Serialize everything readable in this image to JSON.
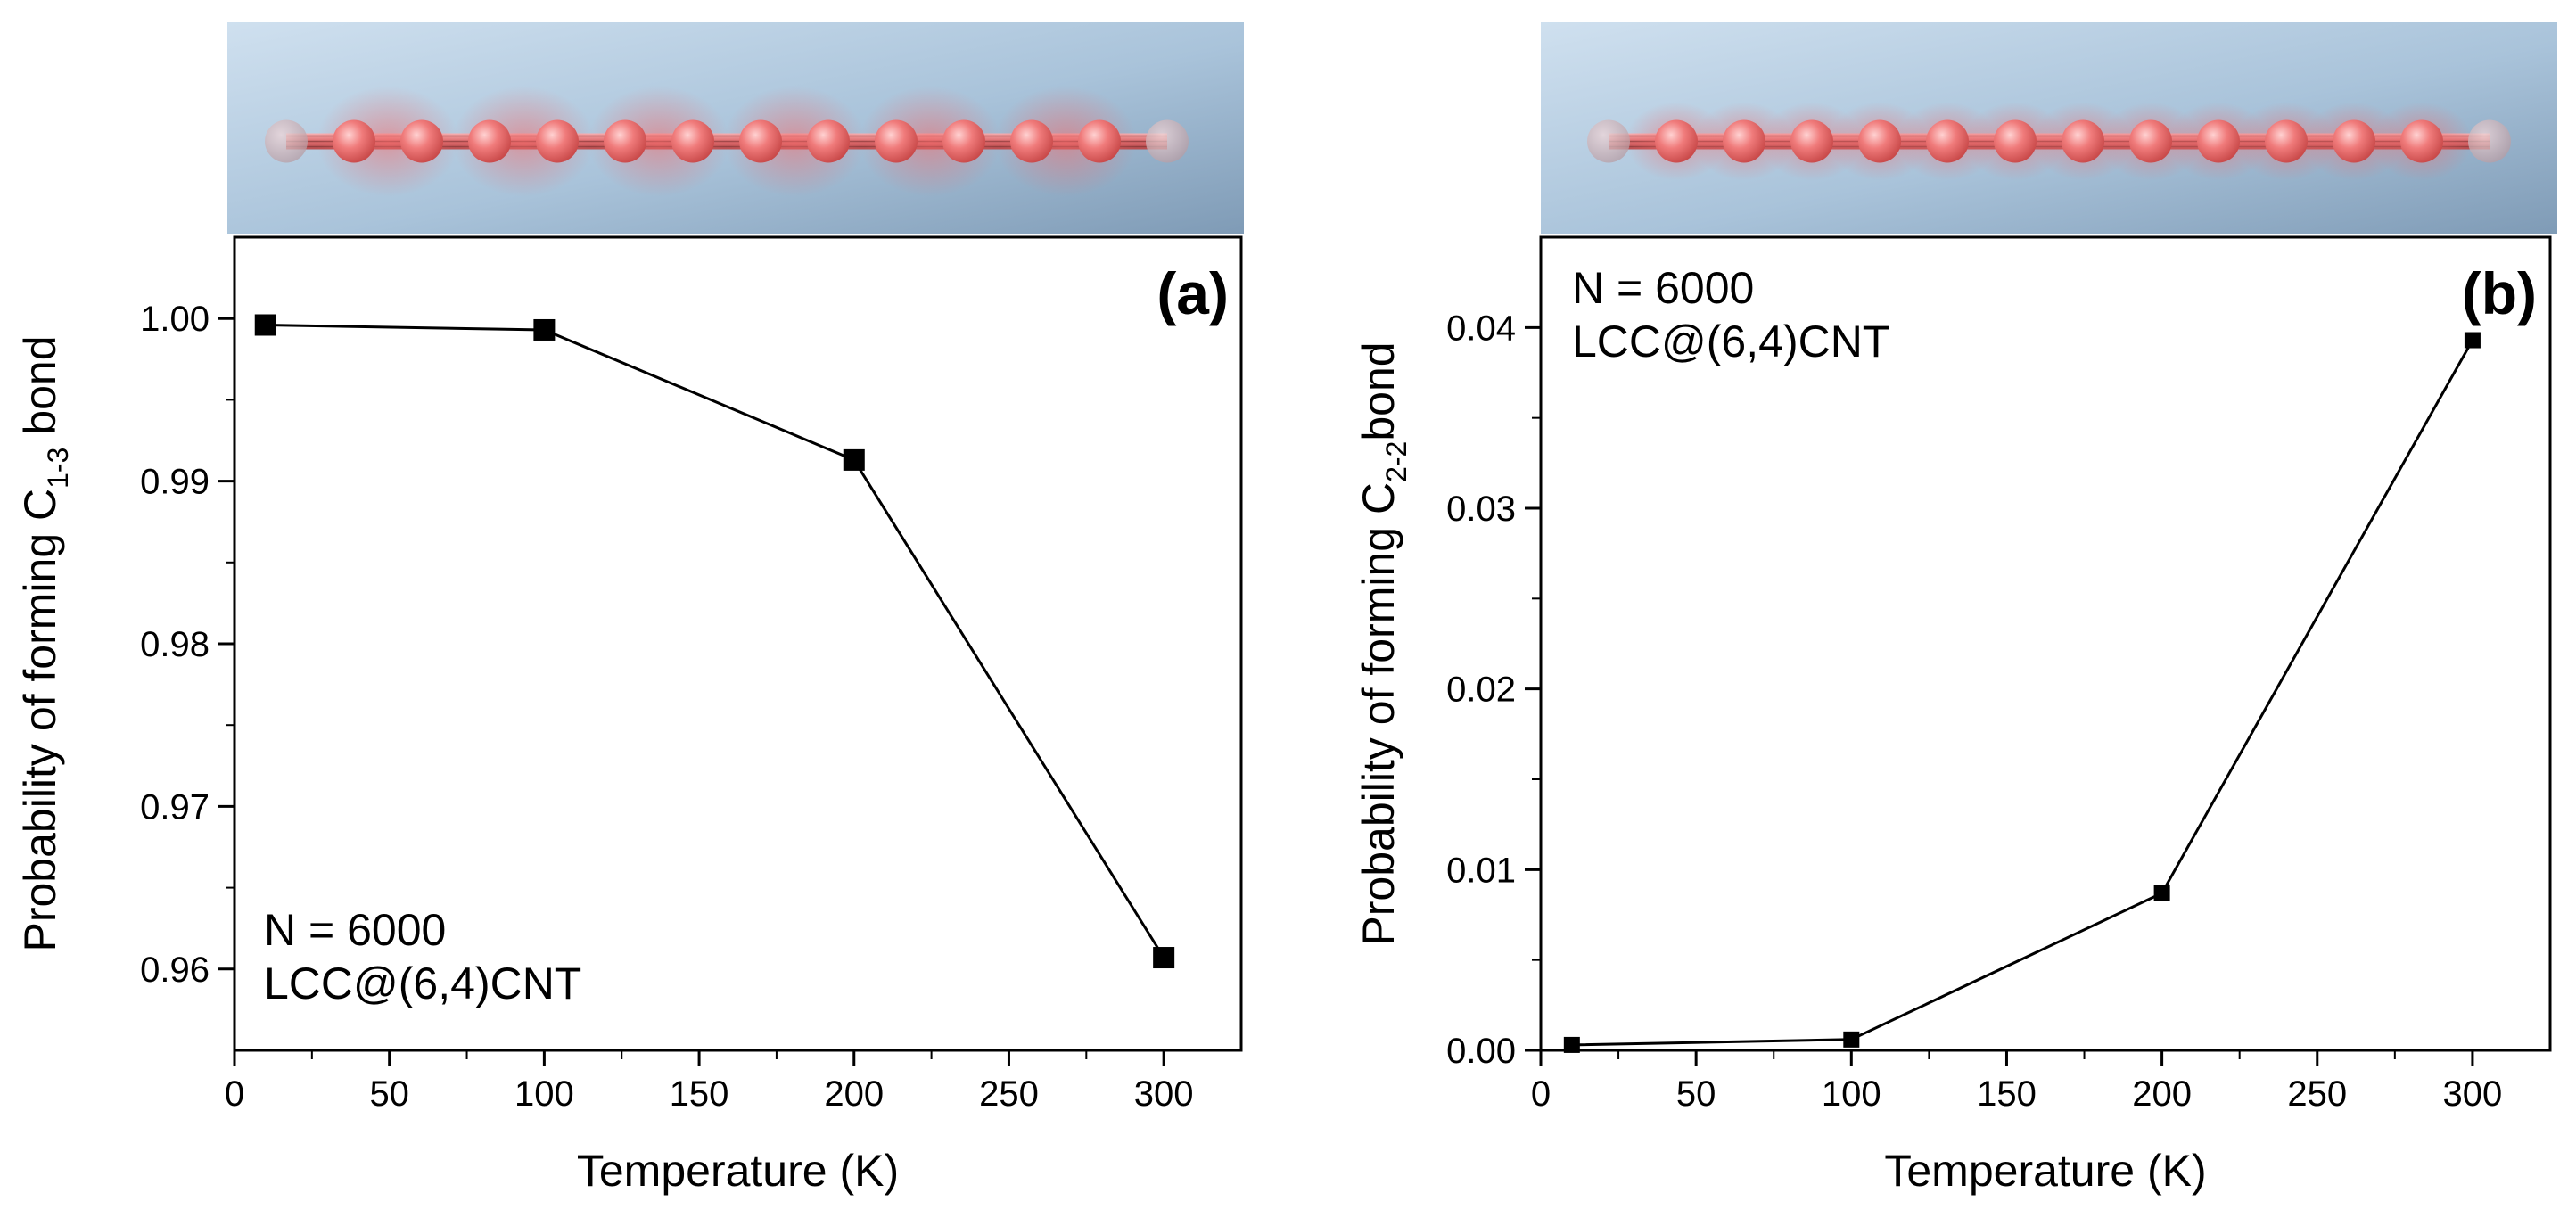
{
  "chart_data": [
    {
      "type": "line",
      "panel_label": "(a)",
      "title": "",
      "xlabel": "Temperature (K)",
      "ylabel": {
        "prefix": "Probability of forming C",
        "subscript": "1-3",
        "suffix": " bond"
      },
      "x": [
        10,
        100,
        200,
        300
      ],
      "series": [
        {
          "name": "N = 6000 LCC@(6,4)CNT",
          "values": [
            0.9996,
            0.9993,
            0.9913,
            0.9607
          ]
        }
      ],
      "xlim": [
        0,
        325
      ],
      "ylim": [
        0.955,
        1.005
      ],
      "xticks": [
        0,
        50,
        100,
        150,
        200,
        250,
        300
      ],
      "yticks": [
        0.96,
        0.97,
        0.98,
        0.99,
        1.0
      ],
      "xtick_labels": [
        "0",
        "50",
        "100",
        "150",
        "200",
        "250",
        "300"
      ],
      "ytick_labels": [
        "0.96",
        "0.97",
        "0.98",
        "0.99",
        "1.00"
      ],
      "annotation": [
        "N = 6000",
        "LCC@(6,4)CNT"
      ],
      "annotation_position": "bottom-left",
      "marker": "square",
      "illustration": "carbon-chain-alternating"
    },
    {
      "type": "line",
      "panel_label": "(b)",
      "title": "",
      "xlabel": "Temperature (K)",
      "ylabel": {
        "prefix": "Probability of forming C",
        "subscript": "2-2",
        "suffix": "bond"
      },
      "x": [
        10,
        100,
        200,
        300
      ],
      "series": [
        {
          "name": "N = 6000 LCC@(6,4)CNT",
          "values": [
            0.0003,
            0.0006,
            0.0087,
            0.0393
          ]
        }
      ],
      "xlim": [
        0,
        325
      ],
      "ylim": [
        0,
        0.045
      ],
      "xticks": [
        0,
        50,
        100,
        150,
        200,
        250,
        300
      ],
      "yticks": [
        0,
        0.01,
        0.02,
        0.03,
        0.04
      ],
      "xtick_labels": [
        "0",
        "50",
        "100",
        "150",
        "200",
        "250",
        "300"
      ],
      "ytick_labels": [
        "0.00",
        "0.01",
        "0.02",
        "0.03",
        "0.04"
      ],
      "annotation": [
        "N = 6000",
        "LCC@(6,4)CNT"
      ],
      "annotation_position": "top-left",
      "marker": "square",
      "illustration": "carbon-chain-uniform"
    }
  ]
}
